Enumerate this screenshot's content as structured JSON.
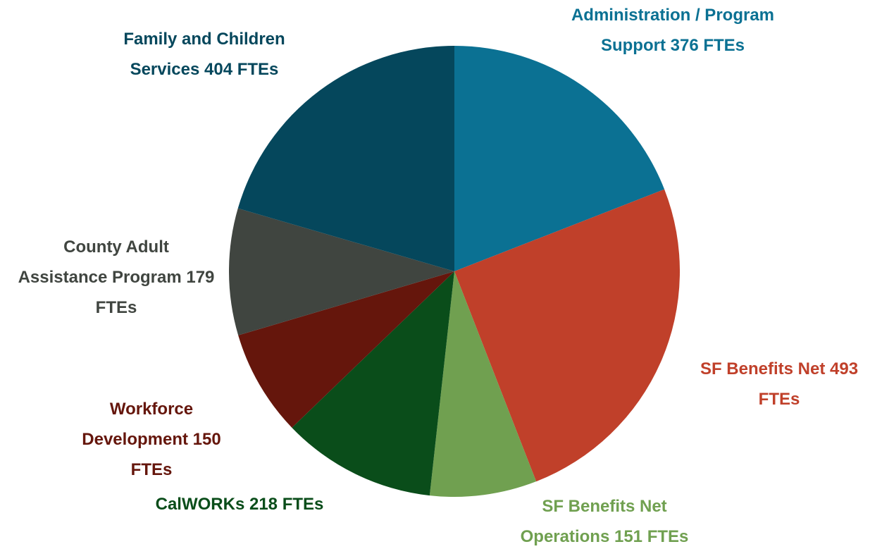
{
  "chart_data": {
    "type": "pie",
    "categories": [
      "Administration / Program Support",
      "SF Benefits Net",
      "SF Benefits Net Operations",
      "CalWORKs",
      "Workforce Development",
      "County Adult Assistance Program",
      "Family and Children Services"
    ],
    "values": [
      376,
      493,
      151,
      218,
      150,
      179,
      404
    ],
    "value_labels": [
      "376 FTEs",
      "493 FTEs",
      "151 FTEs",
      "218 FTEs",
      "150 FTEs",
      "179 FTEs",
      "404 FTEs"
    ],
    "colors": [
      "#0b7193",
      "#c0402a",
      "#70a050",
      "#0a4d1a",
      "#65160c",
      "#404540",
      "#05475c"
    ]
  }
}
